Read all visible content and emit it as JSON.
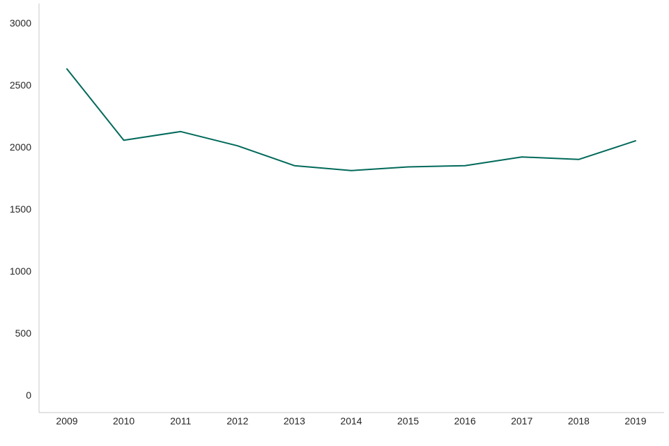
{
  "chart_data": {
    "type": "line",
    "title": "",
    "xlabel": "",
    "ylabel": "",
    "x": [
      2009,
      2010,
      2011,
      2012,
      2013,
      2014,
      2015,
      2016,
      2017,
      2018,
      2019
    ],
    "series": [
      {
        "name": "series-1",
        "values": [
          2630,
          2055,
          2125,
          2010,
          1850,
          1810,
          1840,
          1850,
          1920,
          1900,
          2050
        ]
      }
    ],
    "ylim": [
      0,
      3000
    ],
    "yticks": [
      0,
      500,
      1000,
      1500,
      2000,
      2500,
      3000
    ],
    "xtick_labels": [
      "2009",
      "2010",
      "2011",
      "2012",
      "2013",
      "2014",
      "2015",
      "2016",
      "2017",
      "2018",
      "2019"
    ],
    "grid": false,
    "legend": false,
    "colors": {
      "line": "#00695A",
      "axis": "#C9C9C9",
      "tick_text": "#262626",
      "background": "#FFFFFF"
    }
  }
}
